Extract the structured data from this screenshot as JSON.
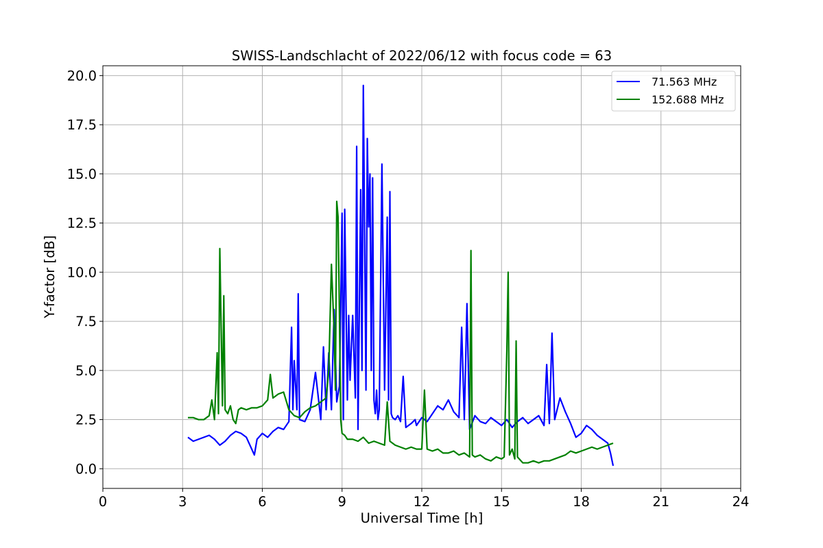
{
  "chart_data": {
    "type": "line",
    "title": "SWISS-Landschlacht of 2022/06/12 with focus code = 63",
    "xlabel": "Universal Time [h]",
    "ylabel": "Y-factor [dB]",
    "xlim": [
      0,
      24
    ],
    "ylim": [
      -1.0,
      20.5
    ],
    "xticks": [
      0,
      3,
      6,
      9,
      12,
      15,
      18,
      21,
      24
    ],
    "xtick_labels": [
      "0",
      "3",
      "6",
      "9",
      "12",
      "15",
      "18",
      "21",
      "24"
    ],
    "yticks": [
      0,
      2.5,
      5,
      7.5,
      10,
      12.5,
      15,
      17.5,
      20
    ],
    "ytick_labels": [
      "0.0",
      "2.5",
      "5.0",
      "7.5",
      "10.0",
      "12.5",
      "15.0",
      "17.5",
      "20.0"
    ],
    "grid": true,
    "legend_position": "top-right",
    "series": [
      {
        "name": "71.563 MHz",
        "legend_label": "  71.563 MHz",
        "color": "#0000ff",
        "x": [
          3.2,
          3.4,
          3.6,
          3.8,
          4.0,
          4.2,
          4.4,
          4.6,
          4.8,
          5.0,
          5.2,
          5.4,
          5.6,
          5.7,
          5.8,
          6.0,
          6.2,
          6.4,
          6.6,
          6.8,
          7.0,
          7.1,
          7.15,
          7.2,
          7.3,
          7.35,
          7.4,
          7.6,
          7.8,
          8.0,
          8.2,
          8.3,
          8.4,
          8.5,
          8.6,
          8.7,
          8.8,
          8.9,
          8.95,
          9.0,
          9.05,
          9.1,
          9.2,
          9.25,
          9.3,
          9.4,
          9.5,
          9.55,
          9.6,
          9.7,
          9.75,
          9.8,
          9.9,
          9.95,
          10.0,
          10.05,
          10.1,
          10.15,
          10.2,
          10.25,
          10.3,
          10.35,
          10.4,
          10.5,
          10.6,
          10.7,
          10.75,
          10.8,
          10.85,
          10.9,
          11.0,
          11.1,
          11.2,
          11.3,
          11.4,
          11.6,
          11.75,
          11.8,
          12.0,
          12.2,
          12.4,
          12.6,
          12.8,
          13.0,
          13.2,
          13.4,
          13.5,
          13.6,
          13.7,
          13.8,
          14.0,
          14.2,
          14.4,
          14.6,
          14.8,
          15.0,
          15.2,
          15.4,
          15.6,
          15.8,
          16.0,
          16.2,
          16.4,
          16.6,
          16.7,
          16.8,
          16.9,
          17.0,
          17.2,
          17.4,
          17.6,
          17.8,
          18.0,
          18.2,
          18.4,
          18.6,
          18.8,
          19.0,
          19.1,
          19.2
        ],
        "y": [
          1.6,
          1.4,
          1.5,
          1.6,
          1.7,
          1.5,
          1.2,
          1.4,
          1.7,
          1.9,
          1.8,
          1.6,
          1.0,
          0.7,
          1.5,
          1.8,
          1.6,
          1.9,
          2.1,
          2.0,
          2.4,
          7.2,
          3.0,
          5.5,
          3.0,
          8.9,
          2.5,
          2.4,
          3.0,
          4.9,
          2.5,
          6.2,
          3.0,
          5.9,
          3.0,
          8.1,
          3.4,
          4.2,
          8.3,
          13.0,
          2.5,
          13.2,
          3.5,
          7.8,
          4.5,
          7.8,
          3.6,
          16.4,
          2.0,
          14.2,
          5.0,
          19.5,
          4.0,
          16.8,
          12.3,
          15.0,
          5.0,
          14.8,
          3.5,
          2.8,
          4.0,
          2.5,
          3.0,
          15.5,
          4.0,
          12.8,
          3.5,
          14.1,
          2.8,
          2.6,
          2.5,
          2.7,
          2.4,
          4.7,
          2.1,
          2.3,
          2.5,
          2.2,
          2.6,
          2.4,
          2.8,
          3.2,
          3.0,
          3.5,
          2.9,
          2.6,
          7.2,
          2.5,
          8.4,
          2.0,
          2.7,
          2.4,
          2.3,
          2.6,
          2.4,
          2.2,
          2.5,
          2.1,
          2.4,
          2.6,
          2.3,
          2.5,
          2.7,
          2.2,
          5.3,
          2.3,
          6.9,
          2.5,
          3.6,
          2.9,
          2.3,
          1.6,
          1.8,
          2.2,
          2.0,
          1.7,
          1.5,
          1.3,
          0.8,
          0.15
        ]
      },
      {
        "name": "152.688 MHz",
        "legend_label": "152.688 MHz",
        "color": "#008000",
        "x": [
          3.2,
          3.4,
          3.6,
          3.8,
          4.0,
          4.1,
          4.2,
          4.3,
          4.35,
          4.4,
          4.5,
          4.55,
          4.6,
          4.7,
          4.8,
          4.9,
          5.0,
          5.1,
          5.2,
          5.4,
          5.6,
          5.8,
          6.0,
          6.2,
          6.3,
          6.4,
          6.6,
          6.8,
          7.0,
          7.2,
          7.4,
          7.6,
          7.8,
          8.0,
          8.2,
          8.4,
          8.5,
          8.6,
          8.7,
          8.75,
          8.8,
          8.85,
          8.9,
          8.95,
          9.0,
          9.1,
          9.2,
          9.4,
          9.6,
          9.8,
          10.0,
          10.2,
          10.4,
          10.6,
          10.7,
          10.8,
          11.0,
          11.2,
          11.4,
          11.6,
          11.8,
          12.0,
          12.1,
          12.2,
          12.4,
          12.6,
          12.8,
          13.0,
          13.2,
          13.4,
          13.6,
          13.8,
          13.85,
          13.9,
          14.0,
          14.2,
          14.4,
          14.6,
          14.8,
          15.0,
          15.1,
          15.2,
          15.25,
          15.3,
          15.4,
          15.5,
          15.55,
          15.6,
          15.8,
          16.0,
          16.2,
          16.4,
          16.6,
          16.8,
          17.0,
          17.2,
          17.4,
          17.6,
          17.8,
          18.0,
          18.2,
          18.4,
          18.6,
          18.8,
          19.0,
          19.2
        ],
        "y": [
          2.6,
          2.6,
          2.5,
          2.5,
          2.7,
          3.5,
          2.5,
          5.9,
          2.8,
          11.2,
          3.2,
          8.8,
          3.0,
          2.8,
          3.2,
          2.5,
          2.3,
          3.0,
          3.1,
          3.0,
          3.1,
          3.1,
          3.2,
          3.5,
          4.8,
          3.6,
          3.8,
          3.9,
          3.0,
          2.7,
          2.6,
          2.9,
          3.1,
          3.2,
          3.4,
          3.6,
          5.0,
          10.4,
          7.0,
          4.0,
          13.6,
          12.8,
          8.0,
          2.5,
          1.8,
          1.7,
          1.5,
          1.5,
          1.4,
          1.6,
          1.3,
          1.4,
          1.3,
          1.2,
          3.4,
          1.4,
          1.2,
          1.1,
          1.0,
          1.1,
          1.0,
          1.0,
          4.0,
          1.0,
          0.9,
          1.0,
          0.8,
          0.8,
          0.9,
          0.7,
          0.8,
          0.6,
          11.1,
          0.7,
          0.6,
          0.7,
          0.5,
          0.4,
          0.6,
          0.5,
          0.6,
          6.0,
          10.0,
          0.7,
          1.0,
          0.5,
          6.5,
          0.6,
          0.3,
          0.3,
          0.4,
          0.3,
          0.4,
          0.4,
          0.5,
          0.6,
          0.7,
          0.9,
          0.8,
          0.9,
          1.0,
          1.1,
          1.0,
          1.1,
          1.2,
          1.3
        ]
      }
    ]
  }
}
